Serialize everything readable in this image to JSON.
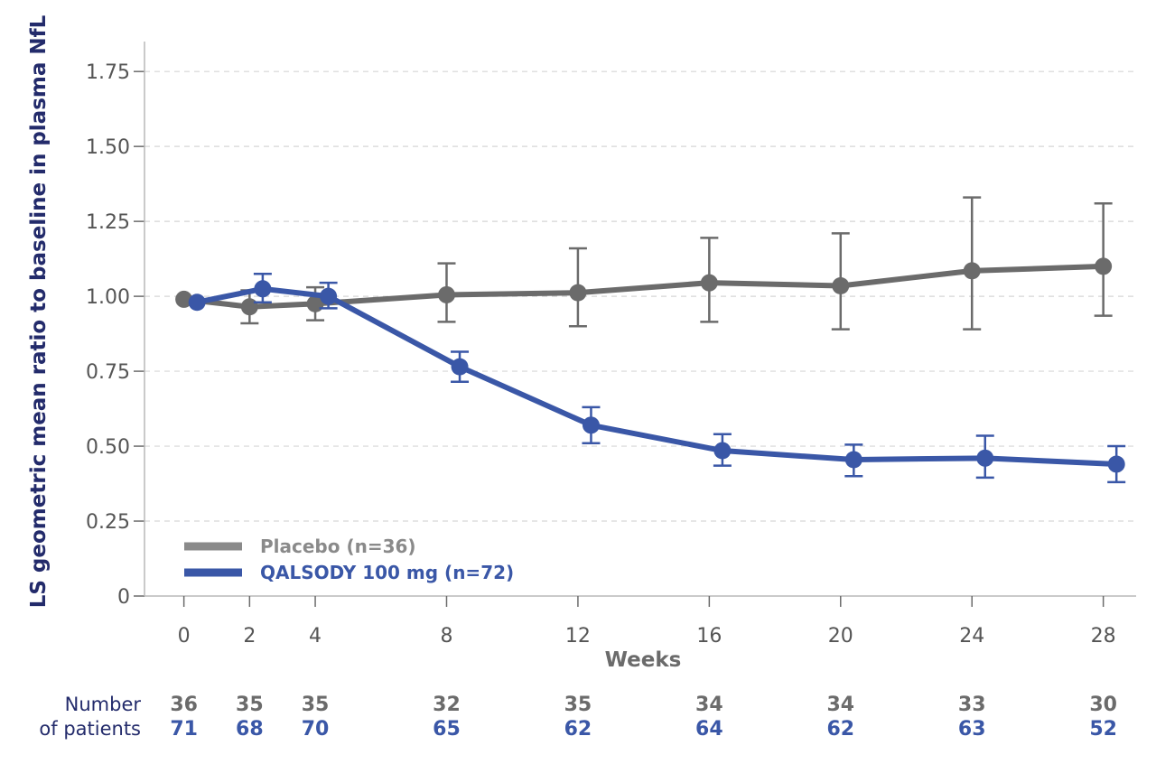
{
  "chart_data": {
    "type": "line",
    "ylabel": "LS geometric mean ratio to baseline in plasma NfL",
    "xlabel": "Weeks",
    "ylim": [
      0,
      1.85
    ],
    "y_ticks": [
      "0",
      "0.25",
      "0.50",
      "0.75",
      "1.00",
      "1.25",
      "1.50",
      "1.75"
    ],
    "x_ticks": [
      0,
      2,
      4,
      8,
      12,
      16,
      20,
      24,
      28
    ],
    "xlim": [
      -1.2,
      29
    ],
    "grid": "horizontal dashed",
    "legend_position": "bottom-left",
    "series": [
      {
        "name": "Placebo (n=36)",
        "color": "#6b6b6b",
        "legend_color": "#8a8a8a",
        "x": [
          0,
          2,
          4,
          8,
          12,
          16,
          20,
          24,
          28
        ],
        "y": [
          0.99,
          0.965,
          0.975,
          1.005,
          1.012,
          1.045,
          1.035,
          1.085,
          1.1
        ],
        "ci_low": [
          0.99,
          0.91,
          0.92,
          0.915,
          0.9,
          0.915,
          0.89,
          0.89,
          0.935
        ],
        "ci_high": [
          0.99,
          1.02,
          1.03,
          1.11,
          1.16,
          1.195,
          1.21,
          1.33,
          1.31
        ]
      },
      {
        "name": "QALSODY 100 mg (n=72)",
        "color": "#3a57a7",
        "legend_color": "#3a57a7",
        "x": [
          0.4,
          2.4,
          4.4,
          8.4,
          12.4,
          16.4,
          20.4,
          24.4,
          28.4
        ],
        "y": [
          0.98,
          1.025,
          1.0,
          0.765,
          0.57,
          0.485,
          0.455,
          0.46,
          0.44
        ],
        "ci_low": [
          0.98,
          0.98,
          0.96,
          0.715,
          0.51,
          0.435,
          0.4,
          0.395,
          0.38
        ],
        "ci_high": [
          0.98,
          1.075,
          1.045,
          0.815,
          0.63,
          0.54,
          0.505,
          0.535,
          0.5
        ]
      }
    ],
    "patients": {
      "label_line1": "Number",
      "label_line2": "of patients",
      "placebo": [
        "36",
        "35",
        "35",
        "32",
        "35",
        "34",
        "34",
        "33",
        "30"
      ],
      "qalsody": [
        "71",
        "68",
        "70",
        "65",
        "62",
        "64",
        "62",
        "63",
        "52"
      ]
    }
  }
}
